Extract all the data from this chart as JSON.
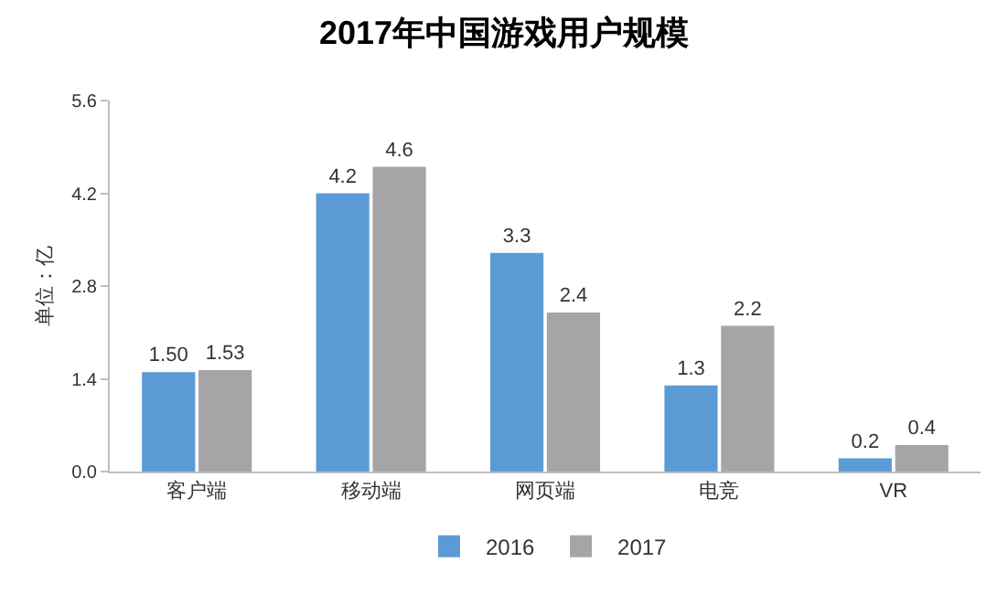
{
  "chart_data": {
    "type": "bar",
    "title": "2017年中国游戏用户规模",
    "ylabel": "单位：亿",
    "categories": [
      "客户端",
      "移动端",
      "网页端",
      "电竞",
      "VR"
    ],
    "series": [
      {
        "name": "2016",
        "color": "#5b9bd5",
        "values": [
          1.5,
          4.2,
          3.3,
          1.3,
          0.2
        ],
        "value_labels": [
          "1.50",
          "4.2",
          "3.3",
          "1.3",
          "0.2"
        ]
      },
      {
        "name": "2017",
        "color": "#a5a5a5",
        "values": [
          1.53,
          4.6,
          2.4,
          2.2,
          0.4
        ],
        "value_labels": [
          "1.53",
          "4.6",
          "2.4",
          "2.2",
          "0.4"
        ]
      }
    ],
    "ylim": [
      0,
      5.6
    ],
    "yticks": [
      {
        "value": 0,
        "label": "0.0"
      },
      1.4,
      2.8,
      4.2,
      5.6
    ],
    "grid": false,
    "legend": "bottom"
  }
}
